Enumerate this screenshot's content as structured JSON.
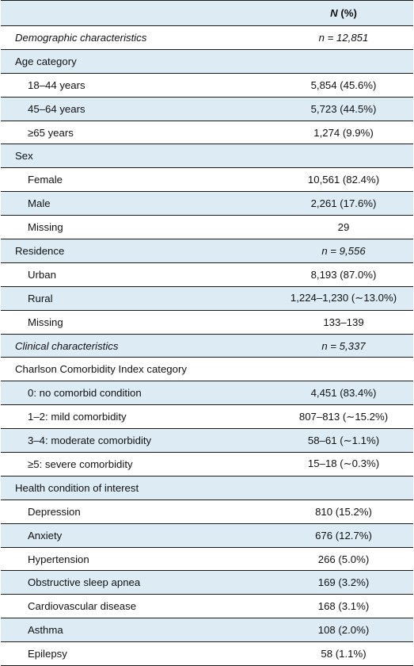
{
  "table": {
    "header": {
      "col1": "",
      "col2_italic": "N",
      "col2_rest": " (%)"
    },
    "rows": [
      {
        "label": "Demographic characteristics",
        "value": "n = 12,851",
        "italic": true,
        "indent": false,
        "shade": false,
        "sep": true
      },
      {
        "label": "Age category",
        "value": "",
        "italic": false,
        "indent": false,
        "shade": true,
        "sep": true
      },
      {
        "label": "18–44 years",
        "value": "5,854 (45.6%)",
        "italic": false,
        "indent": true,
        "shade": false,
        "sep": true
      },
      {
        "label": "45–64 years",
        "value": "5,723 (44.5%)",
        "italic": false,
        "indent": true,
        "shade": true,
        "sep": true
      },
      {
        "label": "≥65 years",
        "value": "1,274 (9.9%)",
        "italic": false,
        "indent": true,
        "shade": false,
        "sep": true
      },
      {
        "label": "Sex",
        "value": "",
        "italic": false,
        "indent": false,
        "shade": true,
        "sep": true
      },
      {
        "label": "Female",
        "value": "10,561 (82.4%)",
        "italic": false,
        "indent": true,
        "shade": false,
        "sep": true
      },
      {
        "label": "Male",
        "value": "2,261 (17.6%)",
        "italic": false,
        "indent": true,
        "shade": true,
        "sep": true
      },
      {
        "label": "Missing",
        "value": "29",
        "italic": false,
        "indent": true,
        "shade": false,
        "sep": true
      },
      {
        "label": "Residence",
        "value": "n = 9,556",
        "italic": false,
        "valueItalic": true,
        "indent": false,
        "shade": true,
        "sep": true
      },
      {
        "label": "Urban",
        "value": "8,193 (87.0%)",
        "italic": false,
        "indent": true,
        "shade": false,
        "sep": true
      },
      {
        "label": "Rural",
        "value": "1,224–1,230 (∼13.0%)",
        "italic": false,
        "indent": true,
        "shade": true,
        "sep": true
      },
      {
        "label": "Missing",
        "value": "133–139",
        "italic": false,
        "indent": true,
        "shade": false,
        "sep": true
      },
      {
        "label": "Clinical characteristics",
        "value": "n = 5,337",
        "italic": true,
        "indent": false,
        "shade": true,
        "sep": true
      },
      {
        "label": "Charlson Comorbidity Index category",
        "value": "",
        "italic": false,
        "indent": false,
        "shade": false,
        "sep": true
      },
      {
        "label": "0: no comorbid condition",
        "value": "4,451 (83.4%)",
        "italic": false,
        "indent": true,
        "shade": true,
        "sep": true
      },
      {
        "label": "1–2: mild comorbidity",
        "value": "807–813 (∼15.2%)",
        "italic": false,
        "indent": true,
        "shade": false,
        "sep": true
      },
      {
        "label": "3–4: moderate comorbidity",
        "value": "58–61 (∼1.1%)",
        "italic": false,
        "indent": true,
        "shade": true,
        "sep": true
      },
      {
        "label": "≥5: severe comorbidity",
        "value": "15–18 (∼0.3%)",
        "italic": false,
        "indent": true,
        "shade": false,
        "sep": true
      },
      {
        "label": "Health condition of interest",
        "value": "",
        "italic": false,
        "indent": false,
        "shade": true,
        "sep": true
      },
      {
        "label": "Depression",
        "value": "810 (15.2%)",
        "italic": false,
        "indent": true,
        "shade": false,
        "sep": true
      },
      {
        "label": "Anxiety",
        "value": "676 (12.7%)",
        "italic": false,
        "indent": true,
        "shade": true,
        "sep": true
      },
      {
        "label": "Hypertension",
        "value": "266 (5.0%)",
        "italic": false,
        "indent": true,
        "shade": false,
        "sep": true
      },
      {
        "label": "Obstructive sleep apnea",
        "value": "169 (3.2%)",
        "italic": false,
        "indent": true,
        "shade": true,
        "sep": true
      },
      {
        "label": "Cardiovascular disease",
        "value": "168 (3.1%)",
        "italic": false,
        "indent": true,
        "shade": false,
        "sep": true
      },
      {
        "label": "Asthma",
        "value": "108 (2.0%)",
        "italic": false,
        "indent": true,
        "shade": true,
        "sep": true
      },
      {
        "label": "Epilepsy",
        "value": "58 (1.1%)",
        "italic": false,
        "indent": true,
        "shade": false,
        "sep": true
      }
    ]
  },
  "colors": {
    "shade": "#dcebf4",
    "rule": "#1a1a1a",
    "text": "#111111"
  }
}
